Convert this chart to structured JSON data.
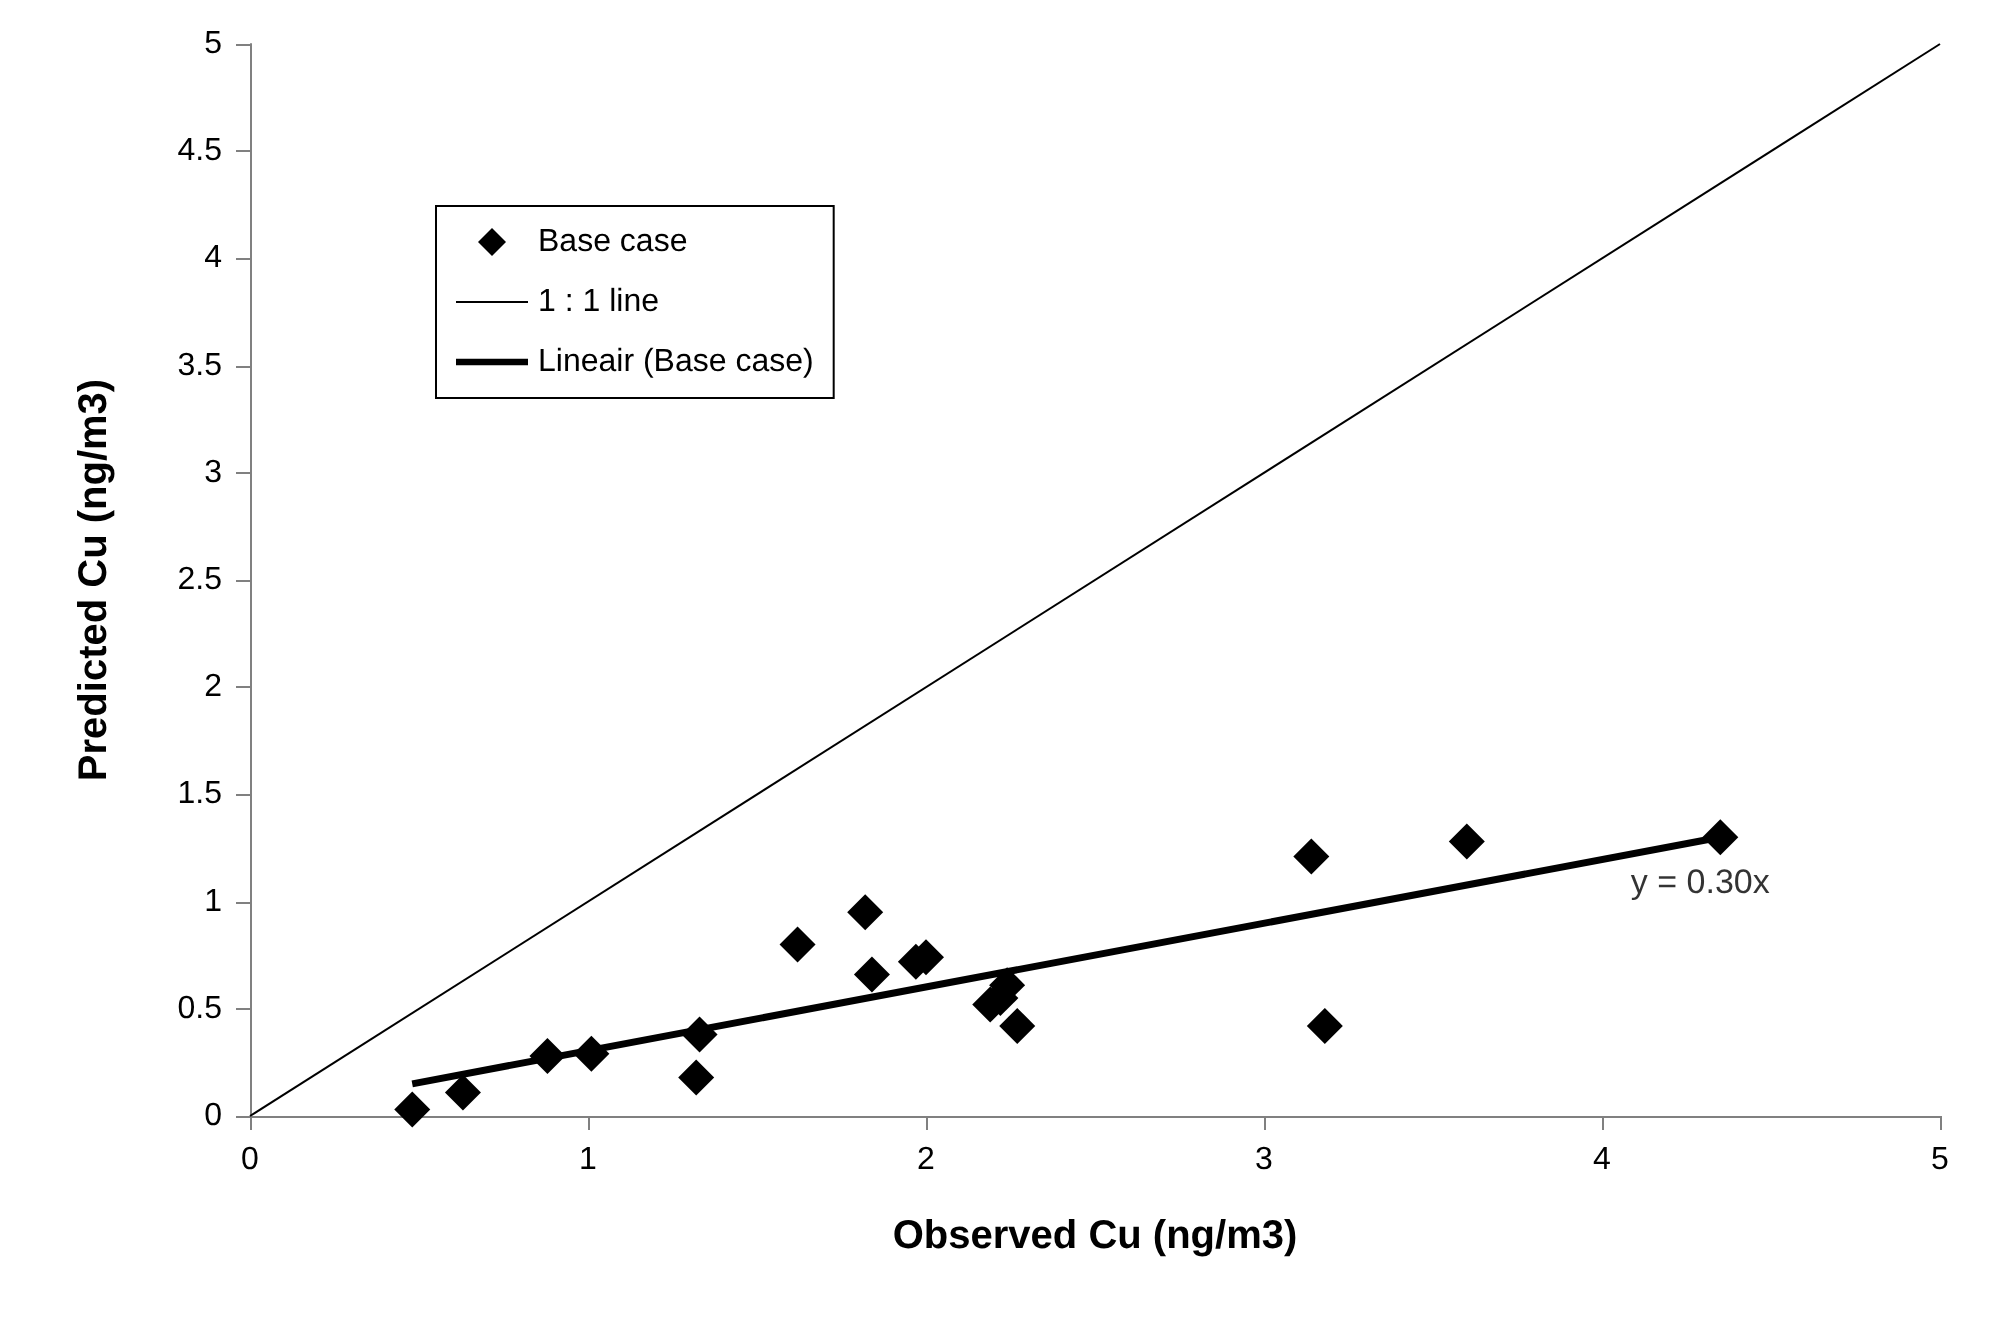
{
  "chart_data": {
    "type": "scatter",
    "xlabel": "Observed Cu (ng/m3)",
    "ylabel": "Predicted Cu (ng/m3)",
    "xlim": [
      0,
      5
    ],
    "ylim": [
      0,
      5
    ],
    "xticks": [
      0,
      1,
      2,
      3,
      4,
      5
    ],
    "yticks": [
      0,
      0.5,
      1,
      1.5,
      2,
      2.5,
      3,
      3.5,
      4,
      4.5,
      5
    ],
    "grid": false,
    "legend": "top left",
    "series": [
      {
        "name": "Base case",
        "marker": "diamond",
        "color": "#000000",
        "x": [
          0.48,
          0.63,
          0.88,
          1.01,
          1.32,
          1.33,
          1.62,
          1.82,
          1.84,
          1.97,
          2.0,
          2.19,
          2.22,
          2.24,
          2.27,
          3.14,
          3.18,
          3.6,
          4.35
        ],
        "values": [
          0.03,
          0.11,
          0.28,
          0.29,
          0.18,
          0.38,
          0.8,
          0.95,
          0.66,
          0.72,
          0.74,
          0.52,
          0.55,
          0.61,
          0.42,
          1.21,
          0.42,
          1.28,
          1.3
        ]
      },
      {
        "name": "1 : 1 line",
        "type": "line",
        "marker": "none",
        "color": "#000000",
        "x": [
          0,
          5
        ],
        "values": [
          0,
          5
        ]
      },
      {
        "name": "Lineair (Base case)",
        "type": "line",
        "marker": "none",
        "color": "#000000",
        "x": [
          0.48,
          4.35
        ],
        "values": [
          0.15,
          1.3
        ]
      }
    ],
    "annotations": [
      {
        "text": "y = 0.30x",
        "x": 4.35,
        "y": 1.3
      }
    ]
  }
}
